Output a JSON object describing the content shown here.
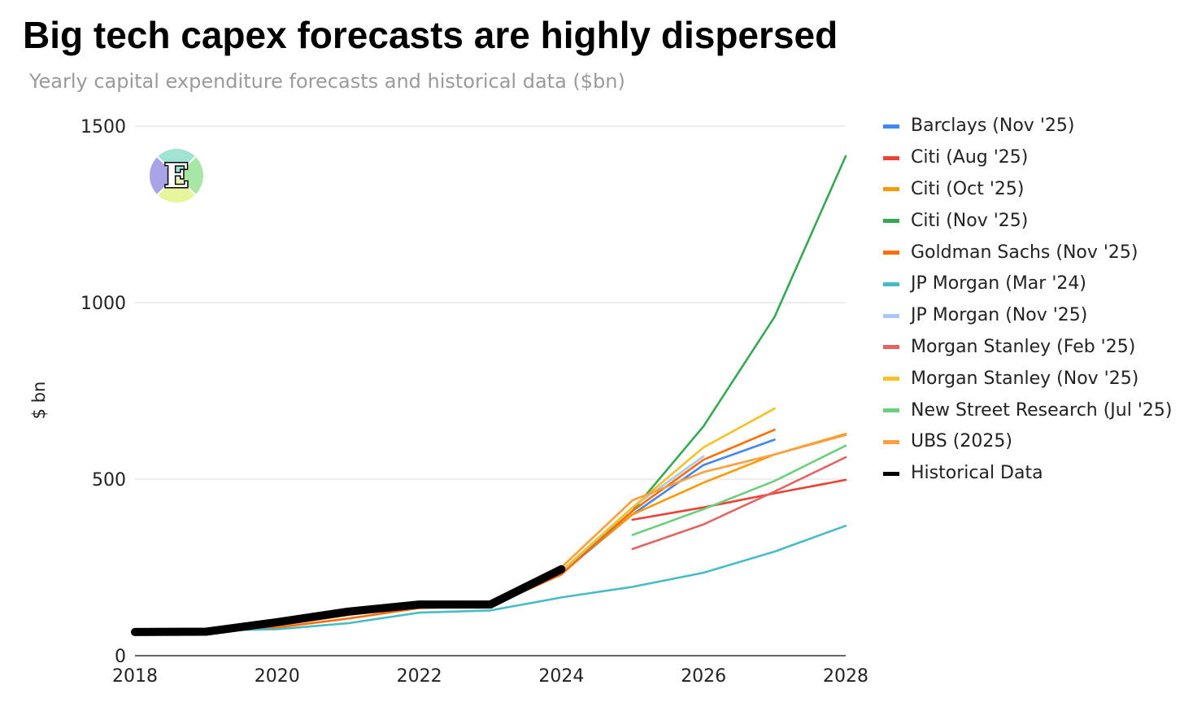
{
  "title": "Big tech capex forecasts are highly dispersed",
  "subtitle": "Yearly capital expenditure forecasts and historical data ($bn)",
  "chart_data": {
    "type": "line",
    "title": "Big tech capex forecasts are highly dispersed",
    "subtitle": "Yearly capital expenditure forecasts and historical data ($bn)",
    "xlabel": "",
    "ylabel": "$ bn",
    "xlim": [
      2018,
      2028
    ],
    "ylim": [
      0,
      1500
    ],
    "xticks": [
      "2018",
      "2020",
      "2022",
      "2024",
      "2026",
      "2028"
    ],
    "yticks": [
      "0",
      "500",
      "1000",
      "1500"
    ],
    "grid": true,
    "legend_position": "right",
    "series": [
      {
        "name": "Barclays (Nov '25)",
        "color": "#4285f4",
        "points": [
          [
            2024,
            233
          ],
          [
            2025,
            400
          ],
          [
            2026,
            540
          ],
          [
            2027,
            612
          ]
        ]
      },
      {
        "name": "Citi (Aug '25)",
        "color": "#ea4335",
        "points": [
          [
            2025,
            385
          ],
          [
            2026,
            420
          ],
          [
            2027,
            460
          ],
          [
            2028,
            498
          ]
        ]
      },
      {
        "name": "Citi (Oct '25)",
        "color": "#ff9900",
        "points": [
          [
            2024,
            236
          ],
          [
            2025,
            400
          ],
          [
            2026,
            490
          ],
          [
            2027,
            570
          ],
          [
            2028,
            628
          ]
        ]
      },
      {
        "name": "Citi (Nov '25)",
        "color": "#34a853",
        "points": [
          [
            2024,
            234
          ],
          [
            2025,
            410
          ],
          [
            2026,
            650
          ],
          [
            2027,
            960
          ],
          [
            2028,
            1415
          ]
        ]
      },
      {
        "name": "Goldman Sachs (Nov '25)",
        "color": "#ff6d01",
        "points": [
          [
            2018,
            70
          ],
          [
            2019,
            71
          ],
          [
            2020,
            80
          ],
          [
            2021,
            105
          ],
          [
            2022,
            135
          ],
          [
            2023,
            140
          ],
          [
            2024,
            230
          ],
          [
            2025,
            410
          ],
          [
            2026,
            555
          ],
          [
            2027,
            640
          ]
        ]
      },
      {
        "name": "JP Morgan (Mar '24)",
        "color": "#46bdc6",
        "points": [
          [
            2018,
            72
          ],
          [
            2019,
            71
          ],
          [
            2020,
            75
          ],
          [
            2021,
            92
          ],
          [
            2022,
            122
          ],
          [
            2023,
            128
          ],
          [
            2024,
            165
          ],
          [
            2025,
            195
          ],
          [
            2026,
            235
          ],
          [
            2027,
            295
          ],
          [
            2028,
            368
          ]
        ]
      },
      {
        "name": "JP Morgan (Nov '25)",
        "color": "#a8c7fa",
        "points": [
          [
            2024,
            238
          ],
          [
            2025,
            420
          ],
          [
            2026,
            565
          ]
        ]
      },
      {
        "name": "Morgan Stanley (Feb '25)",
        "color": "#e06666",
        "points": [
          [
            2025,
            302
          ],
          [
            2026,
            372
          ],
          [
            2027,
            465
          ],
          [
            2028,
            562
          ]
        ]
      },
      {
        "name": "Morgan Stanley (Nov '25)",
        "color": "#f6c026",
        "points": [
          [
            2024,
            240
          ],
          [
            2025,
            420
          ],
          [
            2026,
            590
          ],
          [
            2027,
            700
          ]
        ]
      },
      {
        "name": "New Street Research (Jul '25)",
        "color": "#6ccf7e",
        "points": [
          [
            2025,
            342
          ],
          [
            2026,
            415
          ],
          [
            2027,
            495
          ],
          [
            2028,
            595
          ]
        ]
      },
      {
        "name": "UBS (2025)",
        "color": "#ff9e40",
        "points": [
          [
            2018,
            74
          ],
          [
            2019,
            75
          ],
          [
            2020,
            85
          ],
          [
            2021,
            115
          ],
          [
            2022,
            140
          ],
          [
            2023,
            140
          ],
          [
            2024,
            250
          ],
          [
            2025,
            440
          ],
          [
            2026,
            520
          ],
          [
            2027,
            570
          ],
          [
            2028,
            625
          ]
        ]
      },
      {
        "name": "Historical Data",
        "color": "#000000",
        "points": [
          [
            2018,
            67
          ],
          [
            2019,
            68
          ],
          [
            2020,
            95
          ],
          [
            2021,
            125
          ],
          [
            2022,
            145
          ],
          [
            2023,
            145
          ],
          [
            2024,
            245
          ]
        ]
      }
    ]
  },
  "logo": {
    "letter": "E",
    "colors": [
      "#a9a3e8",
      "#9fe3d2",
      "#a8e6a3",
      "#e6f59a"
    ]
  }
}
